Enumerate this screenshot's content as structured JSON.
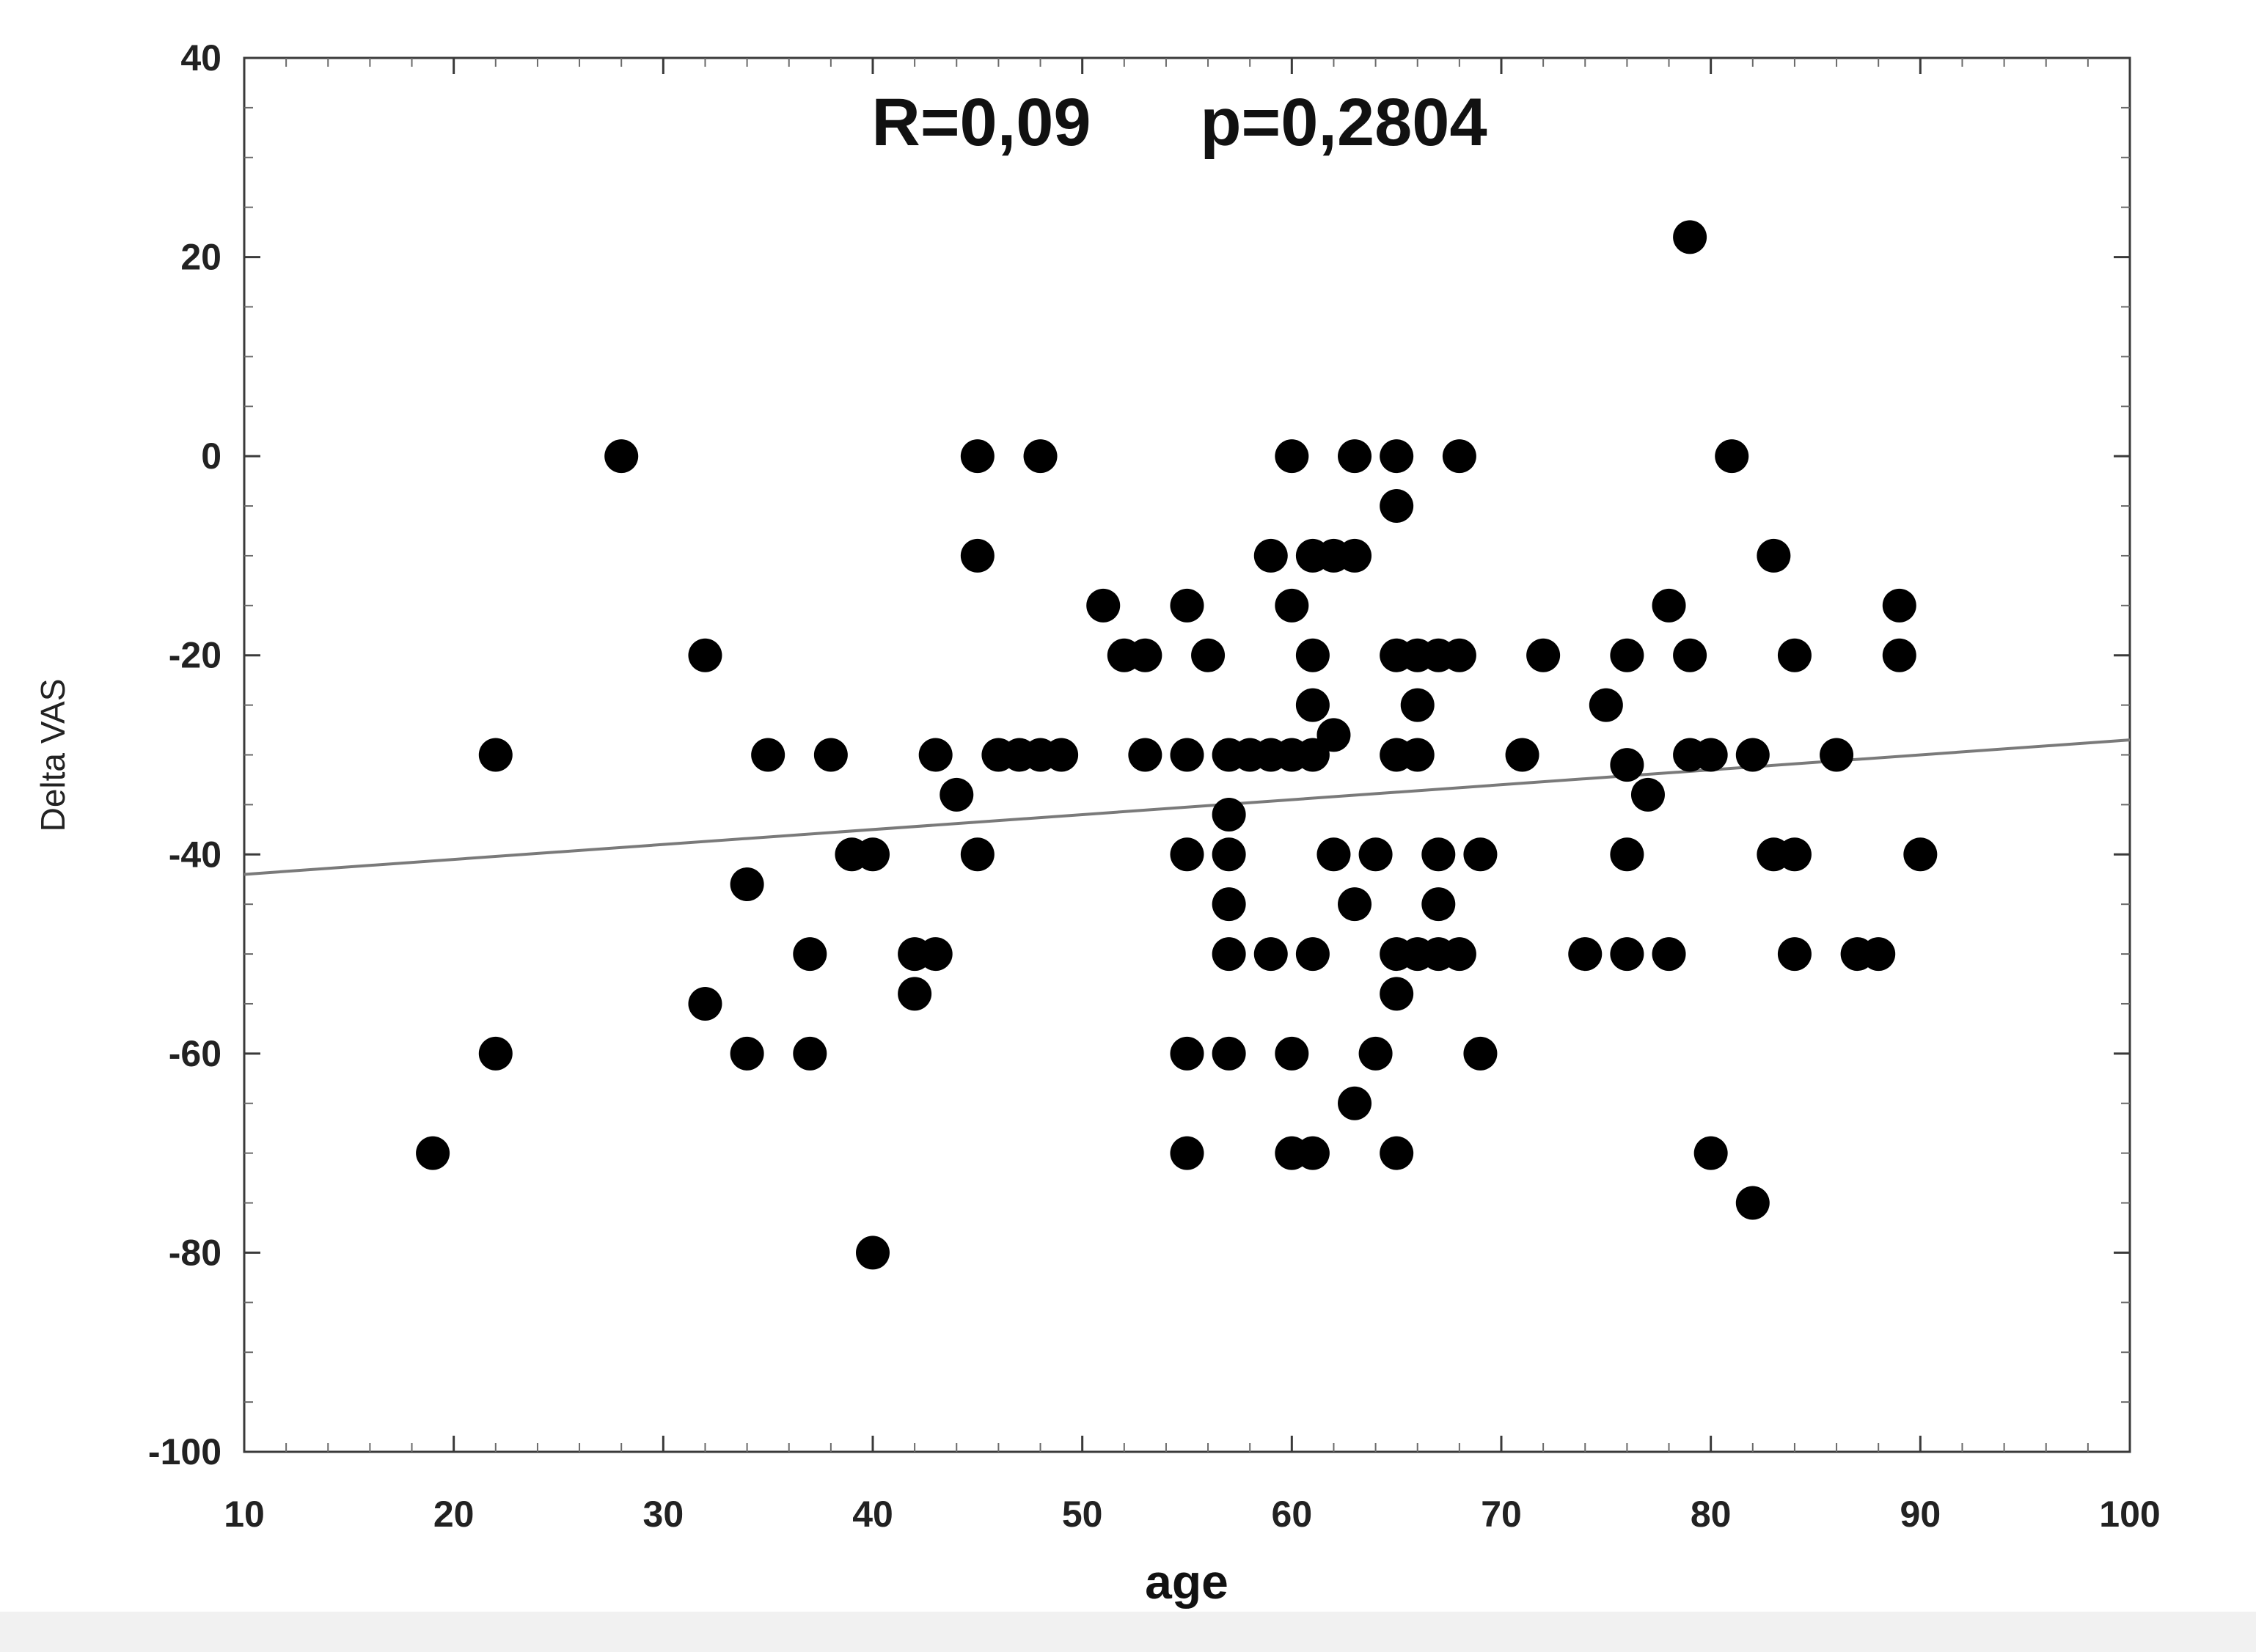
{
  "title": {
    "r_label": "R=0,09",
    "p_label": "p=0,2804"
  },
  "chart_data": {
    "type": "scatter",
    "title": "R=0,09   p=0,2804",
    "xlabel": "age",
    "ylabel": "Delta VAS",
    "xlim": [
      10,
      100
    ],
    "ylim": [
      -100,
      40
    ],
    "x_major_ticks": [
      10,
      20,
      30,
      40,
      50,
      60,
      70,
      80,
      90,
      100
    ],
    "y_major_ticks": [
      40,
      20,
      0,
      -20,
      -40,
      -60,
      -80,
      -100
    ],
    "x_minor_step": 2,
    "y_minor_step": 5,
    "grid": false,
    "legend_position": "none",
    "point_color": "#000000",
    "line_color": "#7a7a7a",
    "stats": {
      "R": "0,09",
      "p": "0,2804"
    },
    "regression_line": {
      "x": [
        10,
        100
      ],
      "y": [
        -42.0,
        -28.5
      ]
    },
    "points": [
      [
        28,
        0
      ],
      [
        45,
        0
      ],
      [
        48,
        0
      ],
      [
        60,
        0
      ],
      [
        63,
        0
      ],
      [
        65,
        0
      ],
      [
        68,
        0
      ],
      [
        81,
        0
      ],
      [
        79,
        22
      ],
      [
        65,
        -5
      ],
      [
        45,
        -10
      ],
      [
        59,
        -10
      ],
      [
        61,
        -10
      ],
      [
        62,
        -10
      ],
      [
        63,
        -10
      ],
      [
        83,
        -10
      ],
      [
        51,
        -15
      ],
      [
        55,
        -15
      ],
      [
        60,
        -15
      ],
      [
        78,
        -15
      ],
      [
        89,
        -15
      ],
      [
        32,
        -20
      ],
      [
        52,
        -20
      ],
      [
        53,
        -20
      ],
      [
        56,
        -20
      ],
      [
        61,
        -20
      ],
      [
        65,
        -20
      ],
      [
        66,
        -20
      ],
      [
        67,
        -20
      ],
      [
        68,
        -20
      ],
      [
        72,
        -20
      ],
      [
        76,
        -20
      ],
      [
        79,
        -20
      ],
      [
        84,
        -20
      ],
      [
        89,
        -20
      ],
      [
        61,
        -25
      ],
      [
        66,
        -25
      ],
      [
        75,
        -25
      ],
      [
        62,
        -28
      ],
      [
        22,
        -30
      ],
      [
        35,
        -30
      ],
      [
        38,
        -30
      ],
      [
        43,
        -30
      ],
      [
        46,
        -30
      ],
      [
        47,
        -30
      ],
      [
        48,
        -30
      ],
      [
        49,
        -30
      ],
      [
        53,
        -30
      ],
      [
        55,
        -30
      ],
      [
        57,
        -30
      ],
      [
        58,
        -30
      ],
      [
        59,
        -30
      ],
      [
        60,
        -30
      ],
      [
        61,
        -30
      ],
      [
        65,
        -30
      ],
      [
        66,
        -30
      ],
      [
        71,
        -30
      ],
      [
        79,
        -30
      ],
      [
        80,
        -30
      ],
      [
        82,
        -30
      ],
      [
        86,
        -30
      ],
      [
        76,
        -31
      ],
      [
        44,
        -34
      ],
      [
        77,
        -34
      ],
      [
        57,
        -36
      ],
      [
        39,
        -40
      ],
      [
        40,
        -40
      ],
      [
        45,
        -40
      ],
      [
        55,
        -40
      ],
      [
        57,
        -40
      ],
      [
        62,
        -40
      ],
      [
        64,
        -40
      ],
      [
        67,
        -40
      ],
      [
        69,
        -40
      ],
      [
        76,
        -40
      ],
      [
        83,
        -40
      ],
      [
        84,
        -40
      ],
      [
        90,
        -40
      ],
      [
        34,
        -43
      ],
      [
        57,
        -45
      ],
      [
        63,
        -45
      ],
      [
        67,
        -45
      ],
      [
        37,
        -50
      ],
      [
        42,
        -50
      ],
      [
        43,
        -50
      ],
      [
        57,
        -50
      ],
      [
        59,
        -50
      ],
      [
        61,
        -50
      ],
      [
        65,
        -50
      ],
      [
        66,
        -50
      ],
      [
        67,
        -50
      ],
      [
        68,
        -50
      ],
      [
        74,
        -50
      ],
      [
        76,
        -50
      ],
      [
        78,
        -50
      ],
      [
        84,
        -50
      ],
      [
        87,
        -50
      ],
      [
        88,
        -50
      ],
      [
        42,
        -54
      ],
      [
        65,
        -54
      ],
      [
        32,
        -55
      ],
      [
        22,
        -60
      ],
      [
        34,
        -60
      ],
      [
        37,
        -60
      ],
      [
        55,
        -60
      ],
      [
        57,
        -60
      ],
      [
        60,
        -60
      ],
      [
        64,
        -60
      ],
      [
        69,
        -60
      ],
      [
        63,
        -65
      ],
      [
        19,
        -70
      ],
      [
        55,
        -70
      ],
      [
        60,
        -70
      ],
      [
        61,
        -70
      ],
      [
        65,
        -70
      ],
      [
        80,
        -70
      ],
      [
        82,
        -75
      ],
      [
        40,
        -80
      ]
    ]
  }
}
